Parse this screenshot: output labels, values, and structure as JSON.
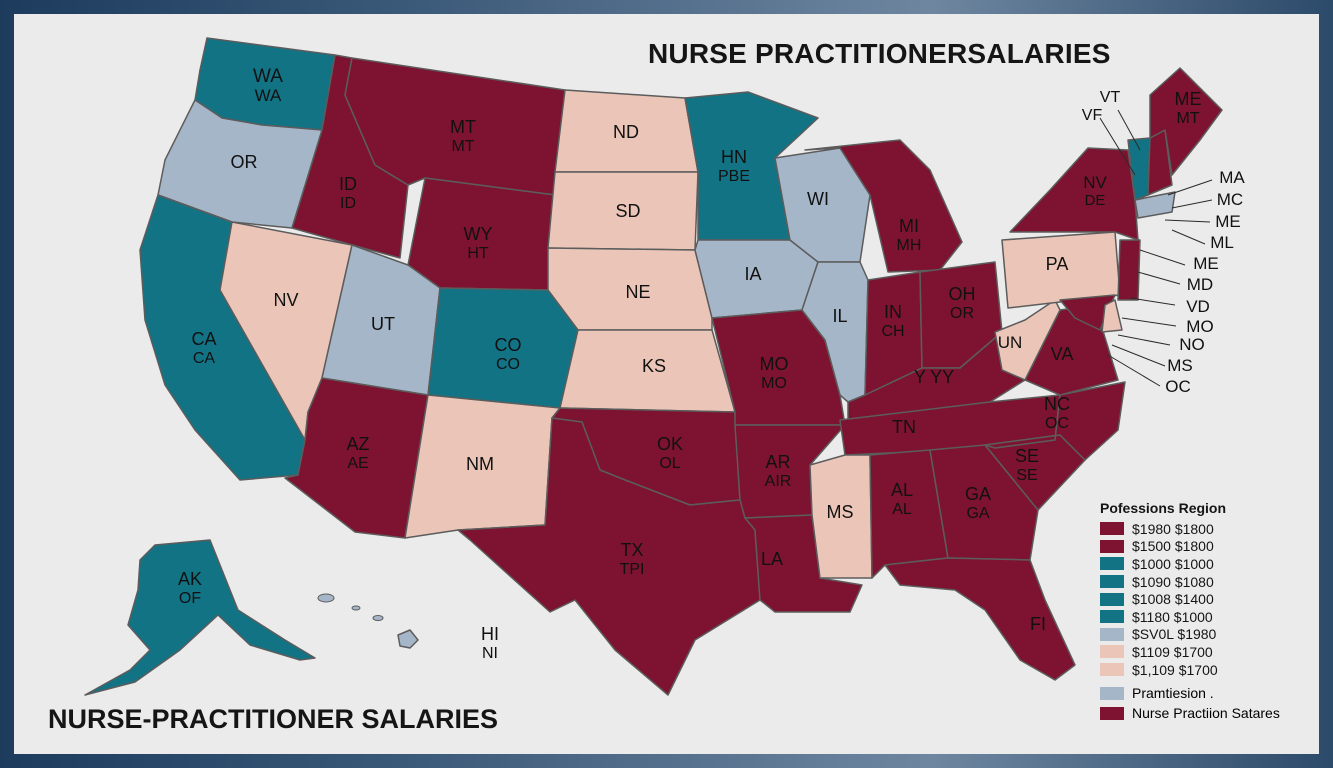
{
  "title_top": "NURSE PRACTITIONERSALARIES",
  "title_bottom": "NURSE-PRACTITIONER SALARIES",
  "colors": {
    "maroon": "#7d1330",
    "teal": "#127384",
    "light_blue": "#a6b6c9",
    "pink": "#ebc6b8",
    "border": "#5c5c5c"
  },
  "states": [
    {
      "id": "wa",
      "l1": "WA",
      "l2": "WA",
      "color": "teal"
    },
    {
      "id": "or",
      "l1": "OR",
      "l2": "",
      "color": "light_blue"
    },
    {
      "id": "ca",
      "l1": "CA",
      "l2": "CA",
      "color": "teal"
    },
    {
      "id": "nv",
      "l1": "NV",
      "l2": "",
      "color": "pink"
    },
    {
      "id": "id",
      "l1": "ID",
      "l2": "ID",
      "color": "maroon"
    },
    {
      "id": "mt",
      "l1": "MT",
      "l2": "MT",
      "color": "maroon"
    },
    {
      "id": "wy",
      "l1": "WY",
      "l2": "HT",
      "color": "maroon"
    },
    {
      "id": "ut",
      "l1": "UT",
      "l2": "",
      "color": "light_blue"
    },
    {
      "id": "az",
      "l1": "AZ",
      "l2": "AE",
      "color": "maroon"
    },
    {
      "id": "co",
      "l1": "CO",
      "l2": "CO",
      "color": "teal"
    },
    {
      "id": "nm",
      "l1": "NM",
      "l2": "",
      "color": "pink"
    },
    {
      "id": "nd",
      "l1": "ND",
      "l2": "",
      "color": "pink"
    },
    {
      "id": "sd",
      "l1": "SD",
      "l2": "",
      "color": "pink"
    },
    {
      "id": "ne",
      "l1": "NE",
      "l2": "",
      "color": "pink"
    },
    {
      "id": "ks",
      "l1": "KS",
      "l2": "",
      "color": "pink"
    },
    {
      "id": "ok",
      "l1": "OK",
      "l2": "OL",
      "color": "maroon"
    },
    {
      "id": "tx",
      "l1": "TX",
      "l2": "TPI",
      "color": "maroon"
    },
    {
      "id": "mn",
      "l1": "HN",
      "l2": "PBE",
      "color": "teal"
    },
    {
      "id": "ia",
      "l1": "IA",
      "l2": "",
      "color": "light_blue"
    },
    {
      "id": "mo",
      "l1": "MO",
      "l2": "MO",
      "color": "maroon"
    },
    {
      "id": "ar",
      "l1": "AR",
      "l2": "AIR",
      "color": "maroon"
    },
    {
      "id": "la",
      "l1": "LA",
      "l2": "",
      "color": "maroon"
    },
    {
      "id": "wi",
      "l1": "WI",
      "l2": "",
      "color": "light_blue"
    },
    {
      "id": "il",
      "l1": "IL",
      "l2": "",
      "color": "light_blue"
    },
    {
      "id": "mi",
      "l1": "MI",
      "l2": "MH",
      "color": "maroon"
    },
    {
      "id": "in",
      "l1": "IN",
      "l2": "CH",
      "color": "maroon"
    },
    {
      "id": "oh",
      "l1": "OH",
      "l2": "OR",
      "color": "maroon"
    },
    {
      "id": "ky",
      "l1": "Y YY",
      "l2": "",
      "color": "maroon"
    },
    {
      "id": "tn",
      "l1": "TN",
      "l2": "",
      "color": "maroon"
    },
    {
      "id": "ms",
      "l1": "MS",
      "l2": "",
      "color": "pink"
    },
    {
      "id": "al",
      "l1": "AL",
      "l2": "AL",
      "color": "maroon"
    },
    {
      "id": "ga",
      "l1": "GA",
      "l2": "GA",
      "color": "maroon"
    },
    {
      "id": "fl",
      "l1": "FI",
      "l2": "",
      "color": "maroon"
    },
    {
      "id": "sc",
      "l1": "SE",
      "l2": "SE",
      "color": "maroon"
    },
    {
      "id": "nc",
      "l1": "NC",
      "l2": "OC",
      "color": "maroon"
    },
    {
      "id": "va",
      "l1": "VA",
      "l2": "",
      "color": "maroon"
    },
    {
      "id": "wv",
      "l1": "UN",
      "l2": "",
      "color": "pink"
    },
    {
      "id": "pa",
      "l1": "PA",
      "l2": "",
      "color": "pink"
    },
    {
      "id": "ny",
      "l1": "NV",
      "l2": "DE",
      "color": "maroon"
    },
    {
      "id": "vt",
      "l1": "",
      "l2": "",
      "color": "teal"
    },
    {
      "id": "nh",
      "l1": "",
      "l2": "",
      "color": "maroon"
    },
    {
      "id": "me",
      "l1": "ME",
      "l2": "MT",
      "color": "maroon"
    },
    {
      "id": "ma",
      "l1": "",
      "l2": "",
      "color": "light_blue"
    },
    {
      "id": "nj",
      "l1": "",
      "l2": "",
      "color": "maroon"
    },
    {
      "id": "md",
      "l1": "",
      "l2": "",
      "color": "maroon"
    },
    {
      "id": "de",
      "l1": "",
      "l2": "",
      "color": "pink"
    },
    {
      "id": "ak",
      "l1": "AK",
      "l2": "OF",
      "color": "teal"
    },
    {
      "id": "hi",
      "l1": "HI",
      "l2": "NI",
      "color": "light_blue"
    }
  ],
  "callouts": {
    "vt": [
      "VT",
      "VF"
    ],
    "east": [
      "MA",
      "MC",
      "ME",
      "ML",
      "ME",
      "MD",
      "VD",
      "MO",
      "NO",
      "MS",
      "OC"
    ]
  },
  "legend": {
    "title": "Pofessions Region",
    "rows": [
      {
        "label": "$1980 $1800",
        "color": "maroon"
      },
      {
        "label": "$1500 $1800",
        "color": "maroon"
      },
      {
        "label": "$1000 $1000",
        "color": "teal"
      },
      {
        "label": "$1090 $1080",
        "color": "teal"
      },
      {
        "label": "$1008 $1400",
        "color": "teal"
      },
      {
        "label": "$1180 $1000",
        "color": "teal"
      },
      {
        "label": "$SV0L $1980",
        "color": "light_blue"
      },
      {
        "label": "$1109 $1700",
        "color": "pink"
      },
      {
        "label": "$1,109 $1700",
        "color": "pink"
      }
    ],
    "extra": [
      {
        "label": "Pramtiesion .",
        "color": "light_blue"
      },
      {
        "label": "Nurse Practiion Satares",
        "color": "maroon"
      }
    ]
  }
}
